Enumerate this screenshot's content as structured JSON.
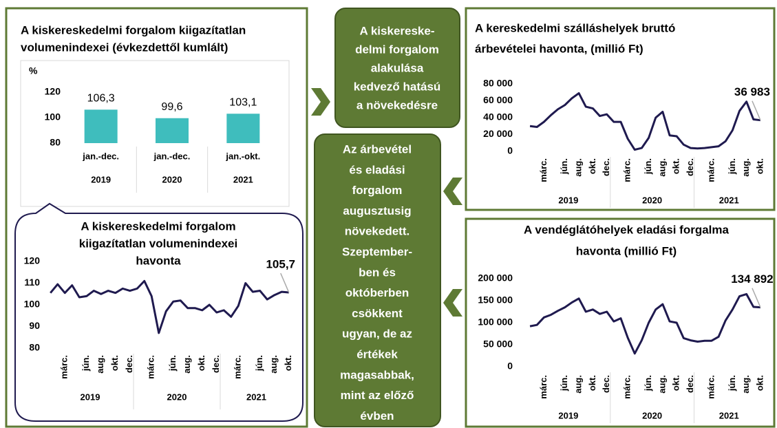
{
  "chart_data": [
    {
      "type": "bar",
      "title": [
        "A kiskereskedelmi forgalom kiigazítatlan",
        "volumenindexei (évkezdettől kumlált)"
      ],
      "ylabel": "%",
      "categories": [
        "jan.-dec.",
        "jan.-dec.",
        "jan.-okt."
      ],
      "years": [
        "2019",
        "2020",
        "2021"
      ],
      "values": [
        106.3,
        99.6,
        103.1
      ],
      "value_labels": [
        "106,3",
        "99,6",
        "103,1"
      ],
      "color": "#3fbdbd",
      "ylim": [
        80,
        120
      ],
      "yticks": [
        80,
        100,
        120
      ],
      "grid": false
    },
    {
      "type": "line",
      "title": [
        "A kiskereskedelmi forgalom",
        "kiigazítatlan volumenindexei",
        "havonta"
      ],
      "categories": [
        null,
        null,
        "márc.",
        null,
        null,
        "jún.",
        null,
        "aug.",
        null,
        "okt.",
        null,
        "dec.",
        null,
        null,
        "márc.",
        null,
        null,
        "jún.",
        null,
        "aug.",
        null,
        "okt.",
        null,
        "dec.",
        null,
        null,
        "márc.",
        null,
        null,
        "jún.",
        null,
        "aug.",
        null,
        "okt."
      ],
      "years": [
        "2019",
        "2020",
        "2021"
      ],
      "values": [
        105.5,
        109.5,
        105.5,
        109,
        103.5,
        104,
        106.5,
        105,
        106.5,
        105.5,
        107.5,
        106.5,
        107.5,
        111,
        104,
        87,
        97,
        101.5,
        102,
        98.5,
        98.5,
        97.5,
        100,
        96.5,
        97.5,
        94.5,
        99.5,
        110,
        106,
        106.5,
        102.5,
        104.5,
        106,
        105.7
      ],
      "value_labels": [
        null,
        null,
        null,
        null,
        null,
        null,
        null,
        null,
        null,
        null,
        null,
        null,
        null,
        null,
        null,
        null,
        null,
        null,
        null,
        null,
        null,
        null,
        null,
        null,
        null,
        null,
        null,
        null,
        null,
        null,
        null,
        null,
        null,
        "105,7"
      ],
      "color": "#1f1a4f",
      "ylim": [
        80,
        120
      ],
      "yticks": [
        80,
        90,
        100,
        110,
        120
      ],
      "grid": false
    },
    {
      "type": "line",
      "title": [
        "A kereskedelmi szálláshelyek bruttó",
        "árbevételei havonta, (millió Ft)"
      ],
      "categories": [
        null,
        null,
        "márc.",
        null,
        null,
        "jún.",
        null,
        "aug.",
        null,
        "okt.",
        null,
        "dec.",
        null,
        null,
        "márc.",
        null,
        null,
        "jún.",
        null,
        "aug.",
        null,
        "okt.",
        null,
        "dec.",
        null,
        null,
        "márc.",
        null,
        null,
        "jún.",
        null,
        "aug.",
        null,
        "okt."
      ],
      "years": [
        "2019",
        "2020",
        "2021"
      ],
      "values": [
        30000,
        29000,
        35000,
        43000,
        50000,
        55000,
        63000,
        69000,
        53000,
        51000,
        42000,
        44000,
        35000,
        35000,
        15000,
        2000,
        4000,
        16000,
        40000,
        47000,
        19000,
        18000,
        8000,
        4000,
        3500,
        4000,
        5000,
        6000,
        12000,
        25000,
        48000,
        59000,
        38000,
        36983
      ],
      "value_labels": [
        null,
        null,
        null,
        null,
        null,
        null,
        null,
        null,
        null,
        null,
        null,
        null,
        null,
        null,
        null,
        null,
        null,
        null,
        null,
        null,
        null,
        null,
        null,
        null,
        null,
        null,
        null,
        null,
        null,
        null,
        null,
        null,
        null,
        "36 983"
      ],
      "color": "#1f1a4f",
      "ylim": [
        0,
        80000
      ],
      "yticks": [
        0,
        {
          "value": 20000,
          "label": "20 000"
        },
        {
          "value": 40000,
          "label": "40 000"
        },
        {
          "value": 60000,
          "label": "60 000"
        },
        {
          "value": 80000,
          "label": "80 000"
        }
      ],
      "grid": false
    },
    {
      "type": "line",
      "title": [
        "A vendéglátóhelyek eladási forgalma",
        "havonta (millió Ft)"
      ],
      "categories": [
        null,
        null,
        "márc.",
        null,
        null,
        "jún.",
        null,
        "aug.",
        null,
        "okt.",
        null,
        "dec.",
        null,
        null,
        "márc.",
        null,
        null,
        "jún.",
        null,
        "aug.",
        null,
        "okt.",
        null,
        "dec.",
        null,
        null,
        "márc.",
        null,
        null,
        "jún.",
        null,
        "aug.",
        null,
        "okt."
      ],
      "years": [
        "2019",
        "2020",
        "2021"
      ],
      "values": [
        92000,
        95000,
        112000,
        118000,
        127000,
        135000,
        146000,
        155000,
        125000,
        130000,
        120000,
        125000,
        103000,
        110000,
        66000,
        30000,
        60000,
        100000,
        130000,
        142000,
        103000,
        100000,
        65000,
        60000,
        57000,
        59000,
        59000,
        68000,
        105000,
        130000,
        160000,
        165000,
        136000,
        134892
      ],
      "value_labels": [
        null,
        null,
        null,
        null,
        null,
        null,
        null,
        null,
        null,
        null,
        null,
        null,
        null,
        null,
        null,
        null,
        null,
        null,
        null,
        null,
        null,
        null,
        null,
        null,
        null,
        null,
        null,
        null,
        null,
        null,
        null,
        null,
        null,
        "134 892"
      ],
      "color": "#1f1a4f",
      "ylim": [
        0,
        200000
      ],
      "yticks": [
        0,
        {
          "value": 50000,
          "label": "50 000"
        },
        {
          "value": 100000,
          "label": "100 000"
        },
        {
          "value": 150000,
          "label": "150 000"
        },
        {
          "value": 200000,
          "label": "200 000"
        }
      ],
      "grid": false
    }
  ],
  "callouts": [
    {
      "lines": [
        "A kiskereske-",
        "delmi forgalom",
        "alakulása",
        "kedvező hatású",
        "a növekedésre"
      ]
    },
    {
      "lines": [
        "Az árbevétel",
        "és eladási",
        "forgalom",
        "augusztusig",
        "növekedett.",
        "Szeptember-",
        "ben és",
        "októberben",
        "csökkent",
        "ugyan, de az",
        "értékek",
        "magasabbak,",
        "mint az előző",
        "évben"
      ]
    }
  ]
}
